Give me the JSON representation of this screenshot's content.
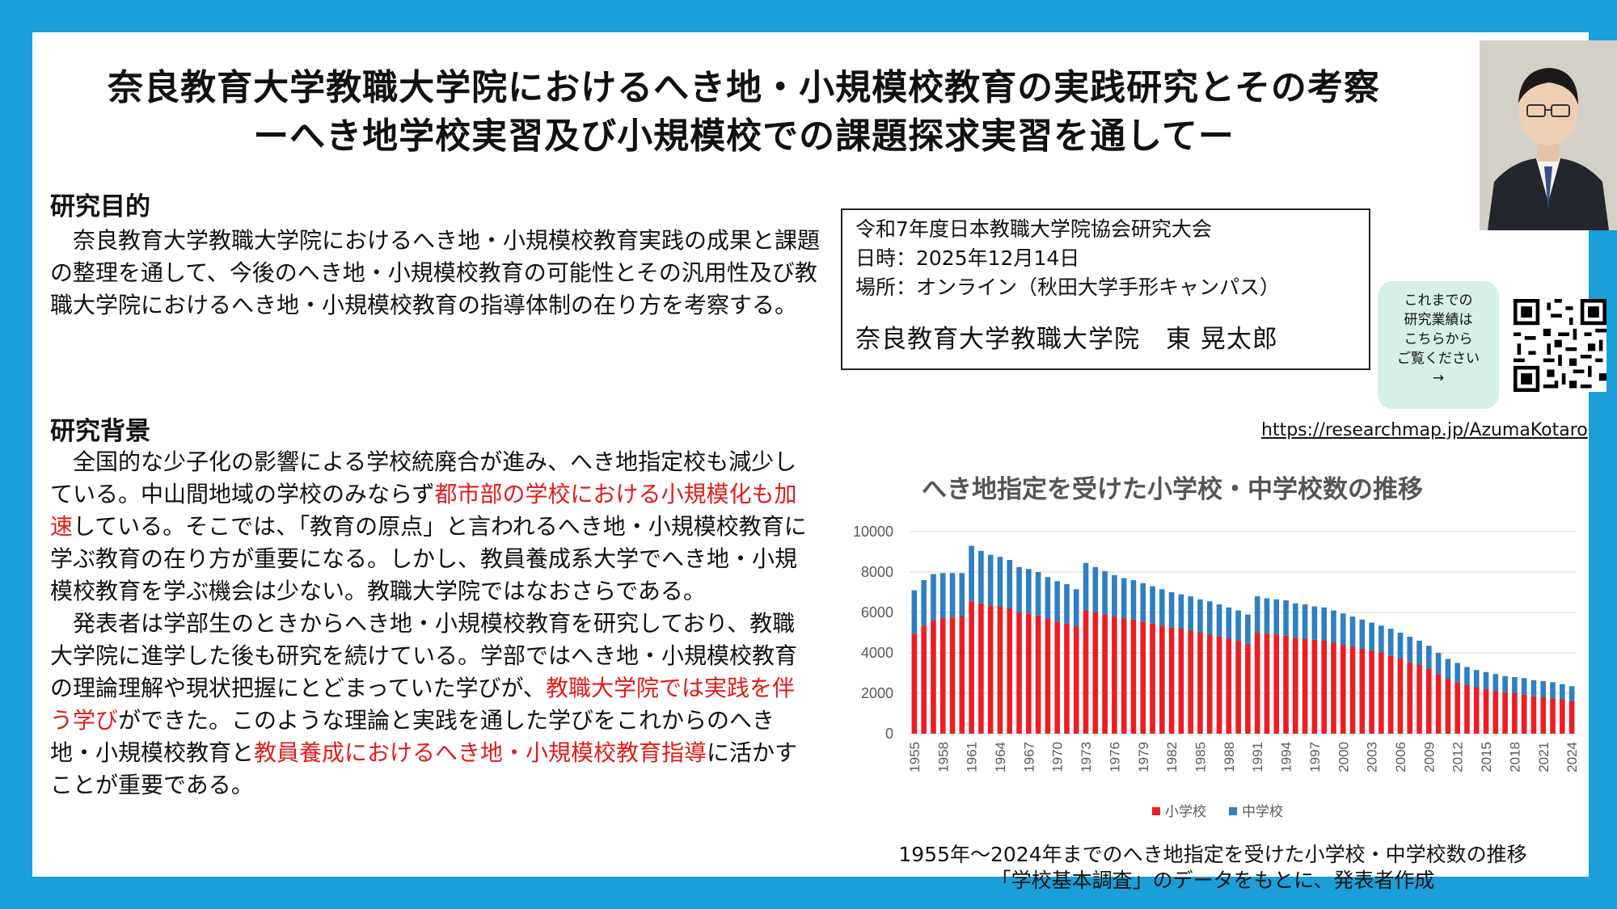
{
  "header": {
    "title_line1": "奈良教育大学教職大学院におけるへき地・小規模校教育の実践研究とその考察",
    "title_line2": "ーへき地学校実習及び小規模校での課題探求実習を通してー"
  },
  "purpose": {
    "heading": "研究目的",
    "text": "　奈良教育大学教職大学院におけるへき地・小規模校教育実践の成果と課題の整理を通して、今後のへき地・小規模校教育の可能性とその汎用性及び教職大学院におけるへき地・小規模校教育の指導体制の在り方を考察する。"
  },
  "background": {
    "heading": "研究背景",
    "p1_a": "　全国的な少子化の影響による学校統廃合が進み、へき地指定校も減少している。中山間地域の学校のみならず",
    "p1_red": "都市部の学校における小規模化も加速",
    "p1_b": "している。そこでは、「教育の原点」と言われるへき地・小規模校教育に学ぶ教育の在り方が重要になる。しかし、教員養成系大学でへき地・小規模校教育を学ぶ機会は少ない。教職大学院ではなおさらである。",
    "p2_a": "　発表者は学部生のときからへき地・小規模校教育を研究しており、教職大学院に進学した後も研究を続けている。学部ではへき地・小規模校教育の理論理解や現状把握にとどまっていた学びが、",
    "p2_red1": "教職大学院では実践を伴う学び",
    "p2_b": "ができた。このような理論と実践を通した学びをこれからのへき地・小規模校教育と",
    "p2_red2": "教員養成におけるへき地・小規模校教育指導",
    "p2_c": "に活かすことが重要である。"
  },
  "info": {
    "event": "令和7年度日本教職大学院協会研究大会",
    "date": "日時：2025年12月14日",
    "place": "場所：オンライン（秋田大学手形キャンパス）",
    "presenter": "奈良教育大学教職大学院　東 晃太郎"
  },
  "qr_note": {
    "line1": "これまでの",
    "line2": "研究業績は",
    "line3": "こちらから",
    "line4": "ご覧ください",
    "arrow": "→"
  },
  "url": "https://researchmap.jp/AzumaKotaro",
  "caption": {
    "line1": "1955年～2024年までのへき地指定を受けた小学校・中学校数の推移",
    "line2": "「学校基本調査」のデータをもとに、発表者作成"
  },
  "colors": {
    "frame": "#1a9fd8",
    "accent_red": "#e21b1b",
    "bar_elementary": "#ee1c25",
    "bar_junior": "#2f7fc1"
  },
  "chart_data": {
    "type": "bar",
    "stacked": true,
    "title": "へき地指定を受けた小学校・中学校数の推移",
    "ylim": [
      0,
      10000
    ],
    "yticks": [
      0,
      2000,
      4000,
      6000,
      8000,
      10000
    ],
    "grid": true,
    "legend_position": "bottom",
    "x": [
      1955,
      1956,
      1957,
      1958,
      1959,
      1960,
      1961,
      1962,
      1963,
      1964,
      1965,
      1966,
      1967,
      1968,
      1969,
      1970,
      1971,
      1972,
      1973,
      1974,
      1975,
      1976,
      1977,
      1978,
      1979,
      1980,
      1981,
      1982,
      1983,
      1984,
      1985,
      1986,
      1987,
      1988,
      1989,
      1990,
      1991,
      1992,
      1993,
      1994,
      1995,
      1996,
      1997,
      1998,
      1999,
      2000,
      2001,
      2002,
      2003,
      2004,
      2005,
      2006,
      2007,
      2008,
      2009,
      2010,
      2011,
      2012,
      2013,
      2014,
      2015,
      2016,
      2017,
      2018,
      2019,
      2020,
      2021,
      2022,
      2023,
      2024
    ],
    "x_tick_labels": [
      "1955",
      "1958",
      "1961",
      "1964",
      "1967",
      "1970",
      "1973",
      "1976",
      "1979",
      "1982",
      "1985",
      "1988",
      "1991",
      "1994",
      "1997",
      "2000",
      "2003",
      "2006",
      "2009",
      "2012",
      "2015",
      "2018",
      "2021",
      "2024"
    ],
    "series": [
      {
        "name": "小学校",
        "values": [
          4950,
          5350,
          5600,
          5700,
          5750,
          5800,
          6550,
          6450,
          6350,
          6300,
          6200,
          6000,
          5950,
          5850,
          5700,
          5550,
          5450,
          5300,
          6100,
          6000,
          5900,
          5800,
          5700,
          5650,
          5550,
          5450,
          5350,
          5250,
          5200,
          5100,
          5000,
          4900,
          4800,
          4700,
          4600,
          4450,
          5000,
          4950,
          4900,
          4850,
          4750,
          4700,
          4650,
          4600,
          4500,
          4400,
          4300,
          4200,
          4100,
          4000,
          3850,
          3700,
          3550,
          3400,
          3200,
          2950,
          2700,
          2550,
          2400,
          2300,
          2200,
          2100,
          2050,
          2000,
          1950,
          1850,
          1800,
          1750,
          1700,
          1600
        ]
      },
      {
        "name": "中学校",
        "values": [
          2150,
          2250,
          2300,
          2250,
          2200,
          2150,
          2750,
          2600,
          2500,
          2450,
          2400,
          2250,
          2200,
          2150,
          2050,
          2000,
          1950,
          1850,
          2350,
          2250,
          2150,
          2050,
          2000,
          1950,
          1900,
          1850,
          1800,
          1750,
          1700,
          1700,
          1650,
          1650,
          1600,
          1550,
          1500,
          1450,
          1800,
          1750,
          1750,
          1750,
          1700,
          1700,
          1650,
          1650,
          1600,
          1550,
          1500,
          1450,
          1400,
          1350,
          1350,
          1300,
          1250,
          1200,
          1150,
          1050,
          1000,
          950,
          900,
          850,
          850,
          850,
          800,
          800,
          800,
          800,
          800,
          800,
          750,
          750
        ]
      }
    ]
  }
}
